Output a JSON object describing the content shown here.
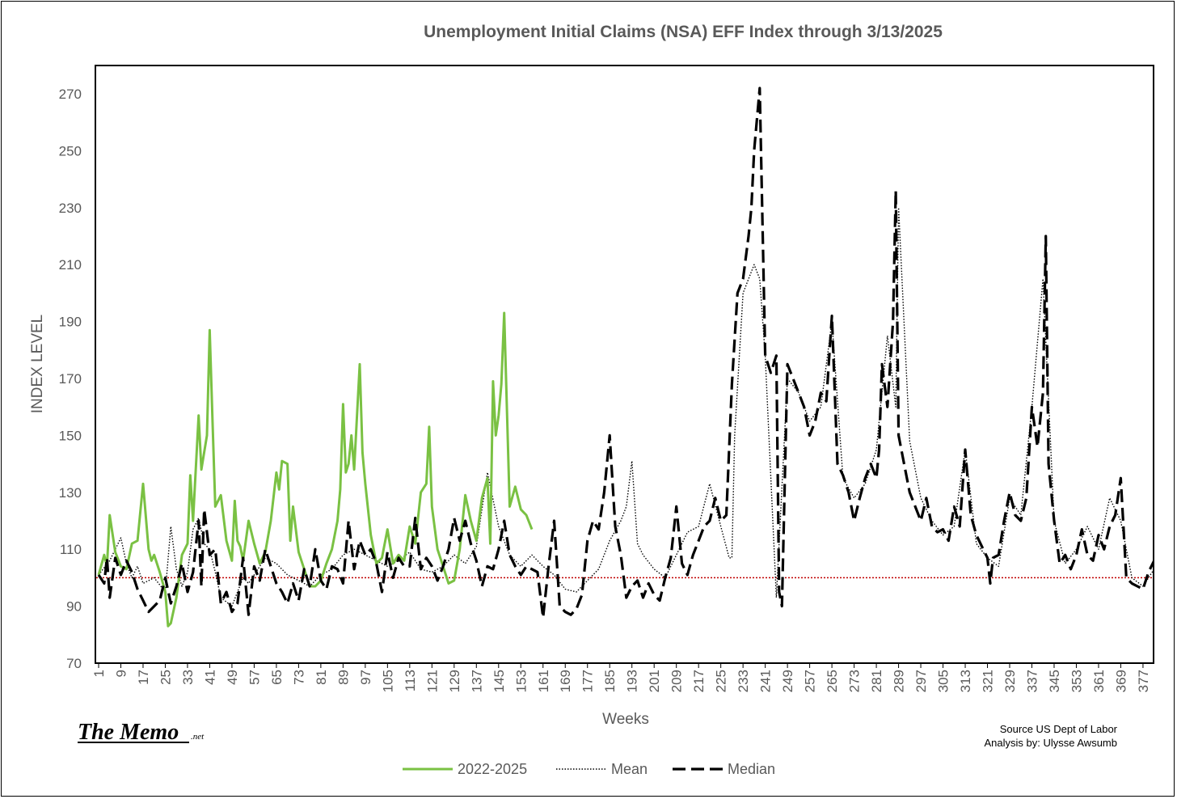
{
  "chart_data": {
    "type": "line",
    "title": "Unemployment Initial Claims (NSA) EFF Index through 3/13/2025",
    "xlabel": "Weeks",
    "ylabel": "INDEX LEVEL",
    "ylim": [
      70,
      280
    ],
    "yticks": [
      70,
      90,
      110,
      130,
      150,
      170,
      190,
      210,
      230,
      250,
      270
    ],
    "xlim": [
      1,
      382
    ],
    "xticks": [
      1,
      9,
      17,
      25,
      33,
      41,
      49,
      57,
      65,
      73,
      81,
      89,
      97,
      105,
      113,
      121,
      129,
      137,
      145,
      153,
      161,
      169,
      177,
      185,
      193,
      201,
      209,
      217,
      225,
      233,
      241,
      249,
      257,
      265,
      273,
      281,
      289,
      297,
      305,
      313,
      321,
      329,
      337,
      345,
      353,
      361,
      369,
      377
    ],
    "reference_line": {
      "y": 100,
      "color": "#c00000"
    },
    "grid": false,
    "legend_position": "bottom",
    "series": [
      {
        "name": "2022-2025",
        "style": "solid",
        "color": "#7ac143",
        "x": [
          1,
          3,
          4,
          5,
          7,
          9,
          11,
          13,
          15,
          17,
          19,
          20,
          21,
          23,
          25,
          26,
          27,
          29,
          31,
          33,
          34,
          35,
          37,
          38,
          40,
          41,
          42,
          43,
          45,
          47,
          49,
          50,
          51,
          52,
          53,
          55,
          57,
          59,
          61,
          63,
          65,
          66,
          67,
          69,
          70,
          71,
          73,
          75,
          77,
          79,
          81,
          83,
          85,
          87,
          88,
          89,
          90,
          91,
          92,
          93,
          95,
          96,
          97,
          99,
          101,
          103,
          105,
          107,
          109,
          111,
          113,
          115,
          117,
          119,
          120,
          121,
          123,
          125,
          127,
          129,
          131,
          133,
          135,
          137,
          139,
          141,
          142,
          143,
          144,
          145,
          146,
          147,
          149,
          151,
          153,
          155,
          157
        ],
        "y": [
          101,
          108,
          104,
          122,
          109,
          104,
          103,
          112,
          113,
          133,
          110,
          106,
          108,
          102,
          95,
          83,
          84,
          93,
          108,
          112,
          136,
          120,
          157,
          138,
          150,
          187,
          155,
          125,
          129,
          113,
          106,
          127,
          113,
          111,
          106,
          120,
          112,
          105,
          109,
          120,
          137,
          131,
          141,
          140,
          113,
          125,
          109,
          103,
          97,
          97,
          99,
          105,
          110,
          120,
          131,
          161,
          137,
          140,
          150,
          138,
          175,
          144,
          133,
          115,
          105,
          107,
          117,
          105,
          108,
          106,
          118,
          112,
          130,
          133,
          153,
          125,
          110,
          104,
          98,
          99,
          110,
          129,
          120,
          113,
          128,
          135,
          112,
          169,
          150,
          157,
          168,
          193,
          125,
          132,
          124,
          122,
          117
        ]
      },
      {
        "name": "Mean",
        "style": "dotted",
        "color": "#000000",
        "x": [
          1,
          5,
          9,
          11,
          13,
          15,
          17,
          21,
          25,
          27,
          29,
          31,
          33,
          35,
          37,
          39,
          41,
          43,
          45,
          49,
          51,
          53,
          55,
          57,
          61,
          65,
          69,
          73,
          77,
          81,
          85,
          89,
          93,
          97,
          101,
          105,
          109,
          113,
          117,
          121,
          125,
          129,
          133,
          137,
          141,
          145,
          149,
          153,
          157,
          161,
          165,
          169,
          173,
          177,
          181,
          185,
          189,
          191,
          193,
          195,
          197,
          201,
          205,
          209,
          213,
          217,
          221,
          225,
          228,
          229,
          230,
          233,
          237,
          239,
          241,
          245,
          249,
          253,
          257,
          261,
          265,
          269,
          273,
          277,
          281,
          285,
          288,
          289,
          293,
          297,
          301,
          305,
          309,
          313,
          317,
          321,
          325,
          329,
          333,
          337,
          341,
          345,
          349,
          353,
          357,
          361,
          365,
          369,
          373,
          377,
          381
        ],
        "y": [
          101,
          106,
          114,
          105,
          100,
          104,
          98,
          100,
          95,
          118,
          103,
          97,
          102,
          117,
          121,
          112,
          110,
          102,
          93,
          90,
          95,
          100,
          98,
          101,
          107,
          105,
          101,
          99,
          97,
          101,
          103,
          108,
          110,
          108,
          106,
          104,
          106,
          109,
          103,
          102,
          104,
          108,
          105,
          111,
          137,
          118,
          108,
          104,
          108,
          104,
          101,
          96,
          95,
          99,
          103,
          113,
          120,
          125,
          141,
          112,
          108,
          103,
          100,
          108,
          116,
          118,
          133,
          118,
          107,
          107,
          150,
          200,
          210,
          205,
          178,
          93,
          170,
          165,
          155,
          160,
          190,
          135,
          128,
          133,
          145,
          185,
          160,
          230,
          148,
          128,
          120,
          115,
          118,
          145,
          112,
          107,
          104,
          128,
          122,
          160,
          205,
          120,
          105,
          110,
          118,
          110,
          128,
          120,
          100,
          97,
          103
        ]
      },
      {
        "name": "Median",
        "style": "dashed",
        "color": "#000000",
        "x": [
          1,
          3,
          4,
          5,
          7,
          9,
          11,
          13,
          15,
          17,
          19,
          21,
          23,
          25,
          27,
          29,
          31,
          33,
          35,
          37,
          38,
          39,
          41,
          43,
          45,
          47,
          49,
          51,
          53,
          55,
          57,
          59,
          61,
          63,
          65,
          67,
          69,
          71,
          73,
          75,
          77,
          79,
          81,
          83,
          85,
          87,
          89,
          91,
          93,
          95,
          97,
          99,
          101,
          103,
          105,
          107,
          109,
          111,
          113,
          115,
          117,
          119,
          121,
          123,
          125,
          127,
          129,
          131,
          133,
          135,
          137,
          139,
          141,
          143,
          145,
          147,
          149,
          151,
          153,
          155,
          157,
          159,
          161,
          163,
          165,
          167,
          169,
          171,
          173,
          175,
          177,
          179,
          181,
          183,
          185,
          187,
          189,
          191,
          193,
          195,
          197,
          199,
          201,
          203,
          205,
          207,
          209,
          211,
          213,
          215,
          217,
          219,
          221,
          223,
          225,
          227,
          229,
          231,
          233,
          235,
          236,
          237,
          239,
          241,
          243,
          245,
          246,
          247,
          249,
          251,
          253,
          255,
          257,
          259,
          261,
          263,
          265,
          267,
          269,
          271,
          273,
          275,
          277,
          279,
          281,
          282,
          283,
          285,
          287,
          288,
          289,
          291,
          293,
          295,
          297,
          299,
          301,
          303,
          305,
          307,
          309,
          311,
          313,
          315,
          317,
          319,
          321,
          322,
          323,
          325,
          327,
          329,
          331,
          333,
          335,
          337,
          339,
          341,
          342,
          343,
          345,
          347,
          349,
          351,
          353,
          355,
          357,
          359,
          361,
          363,
          365,
          367,
          369,
          371,
          373,
          375,
          377,
          379,
          381
        ],
        "y": [
          101,
          98,
          107,
          93,
          107,
          101,
          106,
          102,
          96,
          92,
          88,
          90,
          92,
          100,
          91,
          97,
          105,
          95,
          102,
          120,
          97,
          124,
          108,
          110,
          91,
          95,
          88,
          91,
          107,
          87,
          104,
          99,
          110,
          104,
          98,
          95,
          91,
          98,
          92,
          103,
          97,
          110,
          99,
          96,
          104,
          103,
          98,
          120,
          103,
          113,
          108,
          110,
          105,
          95,
          109,
          100,
          107,
          104,
          104,
          121,
          103,
          107,
          104,
          99,
          104,
          110,
          121,
          113,
          120,
          112,
          106,
          97,
          104,
          103,
          110,
          120,
          108,
          104,
          101,
          104,
          103,
          102,
          86,
          104,
          120,
          90,
          88,
          87,
          89,
          94,
          113,
          120,
          117,
          130,
          150,
          118,
          108,
          93,
          97,
          99,
          93,
          98,
          94,
          92,
          100,
          107,
          125,
          105,
          101,
          108,
          113,
          118,
          120,
          128,
          120,
          122,
          168,
          200,
          205,
          220,
          230,
          250,
          272,
          178,
          172,
          178,
          95,
          90,
          175,
          170,
          165,
          160,
          150,
          155,
          165,
          162,
          192,
          140,
          136,
          130,
          120,
          128,
          135,
          140,
          135,
          145,
          175,
          160,
          190,
          236,
          150,
          140,
          130,
          125,
          120,
          128,
          118,
          116,
          117,
          113,
          125,
          118,
          145,
          122,
          115,
          111,
          107,
          98,
          107,
          108,
          120,
          130,
          122,
          120,
          128,
          160,
          146,
          165,
          220,
          140,
          120,
          105,
          108,
          103,
          108,
          117,
          108,
          106,
          115,
          110,
          118,
          122,
          135,
          100,
          98,
          97,
          96,
          102,
          106
        ]
      }
    ]
  },
  "branding": {
    "logo_main": "The Memo",
    "logo_suffix": ".net"
  },
  "source": {
    "line1": "Source US Dept of Labor",
    "line2": "Analysis by: Ulysse Awsumb"
  }
}
